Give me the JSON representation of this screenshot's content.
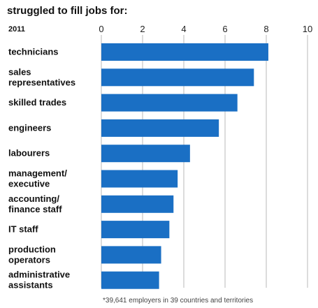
{
  "chart_data": {
    "type": "bar",
    "orientation": "horizontal",
    "title": "struggled to fill jobs for:",
    "year_label": "2011",
    "categories": [
      [
        "technicians"
      ],
      [
        "sales",
        "representatives"
      ],
      [
        "skilled trades"
      ],
      [
        "engineers"
      ],
      [
        "labourers"
      ],
      [
        "management/",
        "executive"
      ],
      [
        "accounting/",
        "finance staff"
      ],
      [
        "IT staff"
      ],
      [
        "production",
        "operators"
      ],
      [
        "administrative",
        "assistants"
      ]
    ],
    "values": [
      8.1,
      7.4,
      6.6,
      5.7,
      4.3,
      3.7,
      3.5,
      3.3,
      2.9,
      2.8
    ],
    "xlim": [
      0,
      10
    ],
    "x_ticks": [
      "0",
      "2",
      "4",
      "6",
      "8",
      "10"
    ],
    "grid": true,
    "bar_color": "#1a6fc4",
    "footnote": "*39,641 employers in 39 countries and territories"
  }
}
